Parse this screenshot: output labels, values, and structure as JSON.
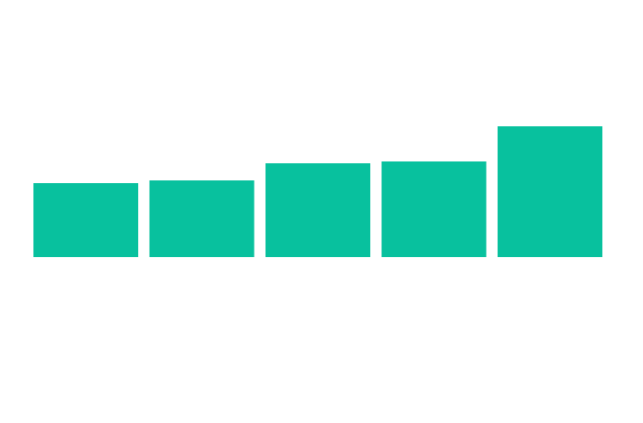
{
  "chart_data": {
    "type": "bar",
    "categories": [
      null,
      null,
      null,
      null,
      null
    ],
    "values": [
      82,
      85,
      104,
      106,
      145
    ],
    "color": "#08c19e"
  }
}
